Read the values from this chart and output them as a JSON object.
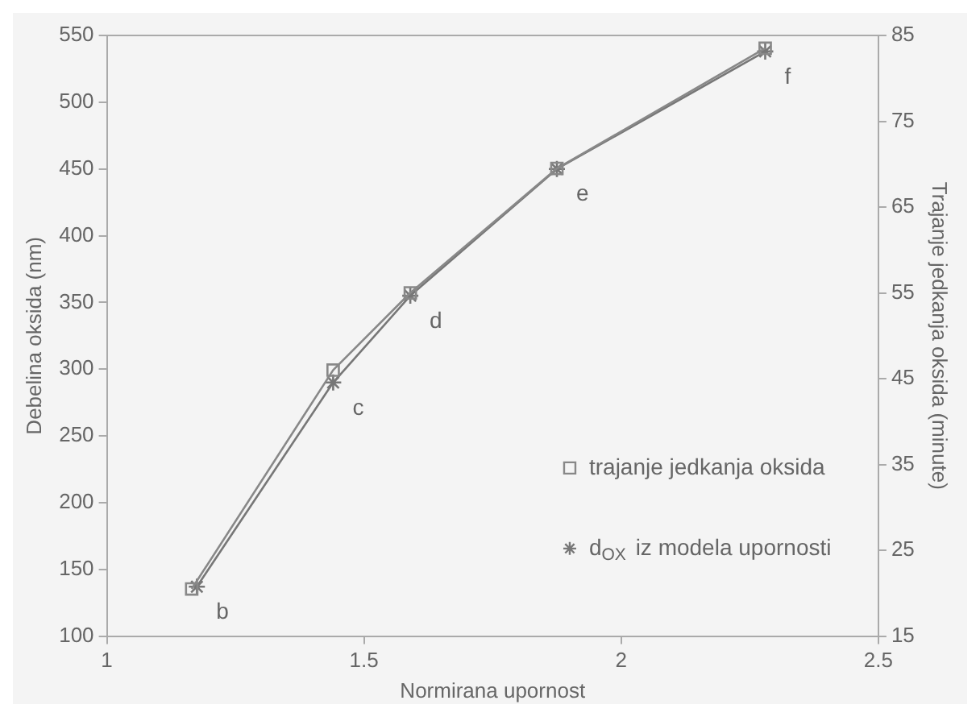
{
  "chart_data": {
    "type": "line",
    "xlabel": "Normirana upornost",
    "ylabel": "Debelina oksida (nm)",
    "y2label": "Trajanje jedkanja oksida (minute)",
    "xlim": [
      1,
      2.5
    ],
    "xticks": [
      1,
      1.5,
      2,
      2.5
    ],
    "ylim": [
      100,
      550
    ],
    "yticks": [
      100,
      150,
      200,
      250,
      300,
      350,
      400,
      450,
      500,
      550
    ],
    "y2lim": [
      15,
      85
    ],
    "y2ticks": [
      15,
      25,
      35,
      45,
      55,
      65,
      75,
      85
    ],
    "grid": false,
    "legend": "bottom right",
    "line_style": "solid",
    "series": [
      {
        "name": "trajanje jedkanja oksida",
        "color": "#888888",
        "marker": "square",
        "axis": "y2",
        "x": [
          1.165,
          1.44,
          1.59,
          1.875,
          2.28
        ],
        "values": [
          20.5,
          46,
          55,
          69.5,
          83.5
        ]
      },
      {
        "name": "d$_{OX}$ iz modela upornosti",
        "color": "#777777",
        "marker": "cross",
        "x": [
          1.175,
          1.44,
          1.59,
          1.875,
          2.28
        ],
        "values": [
          137,
          290,
          355,
          450,
          538
        ]
      }
    ],
    "annotations": [
      {
        "text": "b",
        "x": 1.175,
        "y": 137
      },
      {
        "text": "c",
        "x": 1.44,
        "y": 290
      },
      {
        "text": "d",
        "x": 1.59,
        "y": 355
      },
      {
        "text": "e",
        "x": 1.875,
        "y": 450
      },
      {
        "text": "f",
        "x": 2.28,
        "y": 538
      }
    ]
  }
}
